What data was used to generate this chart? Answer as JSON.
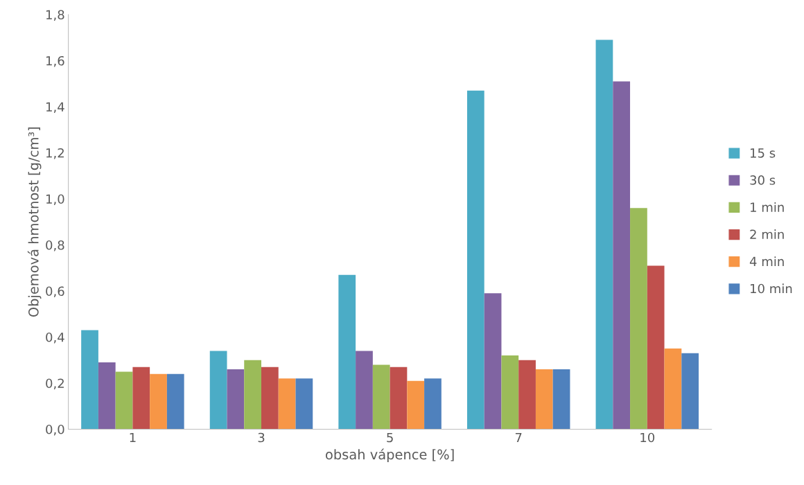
{
  "chart_data": {
    "type": "bar",
    "xlabel": "obsah vápence [%]",
    "ylabel": "Objemová hmotnost [g/cm³]",
    "categories": [
      "1",
      "3",
      "5",
      "7",
      "10"
    ],
    "series": [
      {
        "name": "15 s",
        "color": "#4bacc6",
        "values": [
          0.43,
          0.34,
          0.67,
          1.47,
          1.69
        ]
      },
      {
        "name": "30 s",
        "color": "#8064a2",
        "values": [
          0.29,
          0.26,
          0.34,
          0.59,
          1.51
        ]
      },
      {
        "name": "1 min",
        "color": "#9bbb59",
        "values": [
          0.25,
          0.3,
          0.28,
          0.32,
          0.96
        ]
      },
      {
        "name": "2 min",
        "color": "#c0504d",
        "values": [
          0.27,
          0.27,
          0.27,
          0.3,
          0.71
        ]
      },
      {
        "name": "4 min",
        "color": "#f79646",
        "values": [
          0.24,
          0.22,
          0.21,
          0.26,
          0.35
        ]
      },
      {
        "name": "10 min",
        "color": "#4f81bd",
        "values": [
          0.24,
          0.22,
          0.22,
          0.26,
          0.33
        ]
      }
    ],
    "ylim": [
      0,
      1.8
    ],
    "yticks": [
      {
        "value": 0,
        "label": "0,0"
      },
      {
        "value": 0.2,
        "label": "0,2"
      },
      {
        "value": 0.4,
        "label": "0,4"
      },
      {
        "value": 0.6,
        "label": "0,6"
      },
      {
        "value": 0.8,
        "label": "0,8"
      },
      {
        "value": 1.0,
        "label": "1,0"
      },
      {
        "value": 1.2,
        "label": "1,2"
      },
      {
        "value": 1.4,
        "label": "1,4"
      },
      {
        "value": 1.6,
        "label": "1,6"
      },
      {
        "value": 1.8,
        "label": "1,8"
      }
    ],
    "grid": false,
    "legend": "right"
  }
}
